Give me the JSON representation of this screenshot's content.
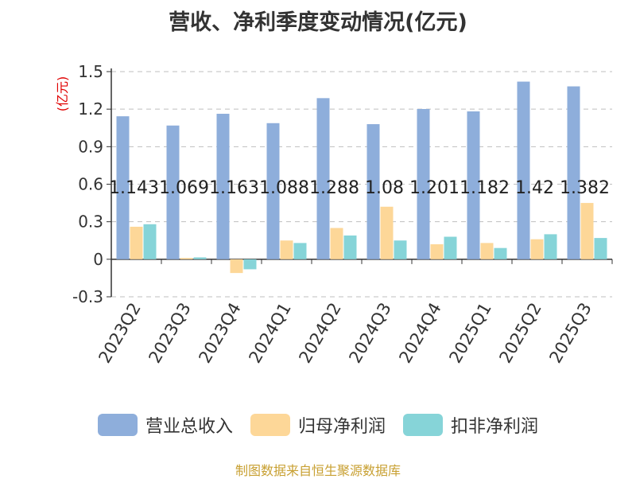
{
  "chart_data": {
    "type": "bar",
    "title": "营收、净利季度变动情况(亿元)",
    "unit_label": "(亿元)",
    "categories": [
      "2023Q2",
      "2023Q3",
      "2023Q4",
      "2024Q1",
      "2024Q2",
      "2024Q3",
      "2024Q4",
      "2025Q1",
      "2025Q2",
      "2025Q3"
    ],
    "series": [
      {
        "name": "营业总收入",
        "color": "#8eaedb",
        "values": [
          1.143,
          1.069,
          1.163,
          1.088,
          1.288,
          1.08,
          1.201,
          1.182,
          1.42,
          1.382
        ],
        "labels": [
          "1.143",
          "1.069",
          "1.163",
          "1.088",
          "1.288",
          "1.08",
          "1.201",
          "1.182",
          "1.42",
          "1.382"
        ]
      },
      {
        "name": "归母净利润",
        "color": "#fdd798",
        "values": [
          0.26,
          0.01,
          -0.11,
          0.15,
          0.25,
          0.42,
          0.12,
          0.13,
          0.16,
          0.45
        ]
      },
      {
        "name": "扣非净利润",
        "color": "#86d4d8",
        "values": [
          0.28,
          0.015,
          -0.08,
          0.13,
          0.19,
          0.15,
          0.18,
          0.09,
          0.2,
          0.17
        ]
      }
    ],
    "yticks": [
      "1.5",
      "1.2",
      "0.9",
      "0.6",
      "0.3",
      "0",
      "-0.3"
    ],
    "ylim": [
      -0.3,
      1.5
    ],
    "grid": true,
    "legend": "bottom"
  },
  "source": "制图数据来自恒生聚源数据库"
}
